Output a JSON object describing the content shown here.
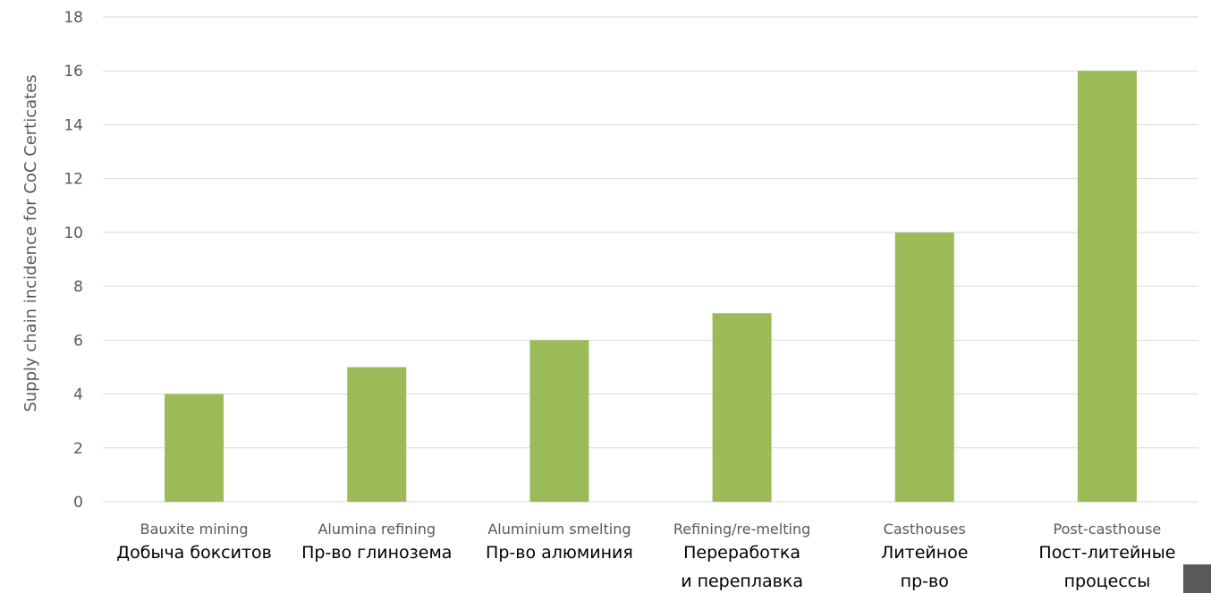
{
  "chart_data": {
    "type": "bar",
    "ylabel": "Supply chain incidence for CoC Certicates",
    "xlabel": "",
    "ylim": [
      0,
      18
    ],
    "yticks": [
      0,
      2,
      4,
      6,
      8,
      10,
      12,
      14,
      16,
      18
    ],
    "grid": true,
    "categories": [
      "Bauxite mining",
      "Alumina refining",
      "Aluminium smelting",
      "Refining/re-melting",
      "Casthouses",
      "Post-casthouse"
    ],
    "categories_ru": [
      [
        "Добыча бокситов"
      ],
      [
        "Пр-во глинозема"
      ],
      [
        "Пр-во алюминия"
      ],
      [
        "Переработка",
        "и переплавка"
      ],
      [
        "Литейное",
        "пр-во"
      ],
      [
        "Пост-литейные",
        "процессы"
      ]
    ],
    "values": [
      4,
      5,
      6,
      7,
      10,
      16
    ],
    "colors": {
      "bar": "#9bbb59",
      "grid": "#d9d9d9",
      "axis_text": "#595959",
      "ru_text": "#000000",
      "corner_square": "#595959"
    }
  }
}
